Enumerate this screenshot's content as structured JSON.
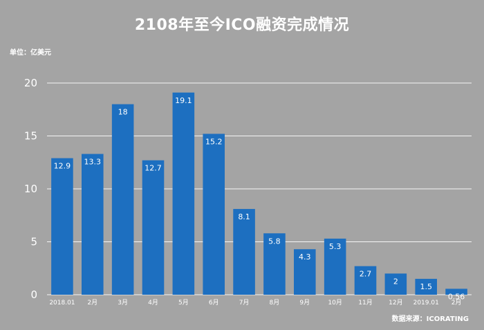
{
  "title": "2108年至今ICO融资完成情况",
  "unit_label": "单位：亿美元",
  "source_label": "数据来源：ICORATING",
  "colors": {
    "background": "#a4a4a4",
    "bar": "#1d6fc0",
    "text": "#ffffff",
    "grid": "#ffffff"
  },
  "chart_data": {
    "type": "bar",
    "title": "2108年至今ICO融资完成情况",
    "xlabel": "",
    "ylabel": "",
    "categories": [
      "2018.01",
      "2月",
      "3月",
      "4月",
      "5月",
      "6月",
      "7月",
      "8月",
      "9月",
      "10月",
      "11月",
      "12月",
      "2019.01",
      "2月"
    ],
    "values": [
      12.9,
      13.3,
      18,
      12.7,
      19.1,
      15.2,
      8.1,
      5.8,
      4.3,
      5.3,
      2.7,
      2,
      1.5,
      0.56
    ],
    "data_labels": [
      "12.9",
      "13.3",
      "18",
      "12.7",
      "19.1",
      "15.2",
      "8.1",
      "5.8",
      "4.3",
      "5.3",
      "2.7",
      "2",
      "1.5",
      "0.56"
    ],
    "ylim": [
      0,
      20
    ],
    "yticks": [
      0,
      5,
      10,
      15,
      20
    ],
    "grid": true,
    "legend": "none"
  }
}
